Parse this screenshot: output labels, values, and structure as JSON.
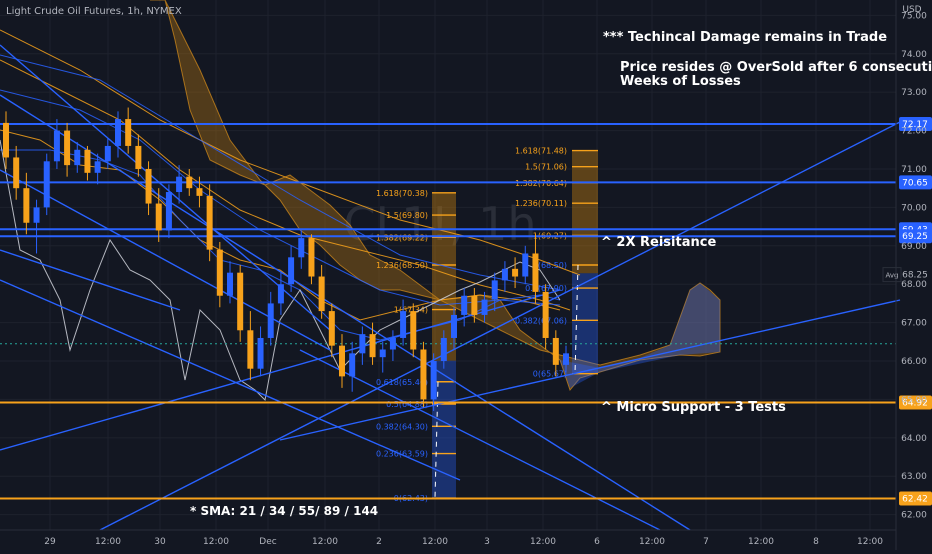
{
  "header": {
    "symbol_line": "Light Crude Oil Futures, 1h, NYMEX",
    "currency": "USD",
    "watermark": "CL1!, 1h"
  },
  "annotations": {
    "damage": "*** Techincal Damage remains in Trade",
    "price_line1": "Price resides @ OverSold after 6 consecutive",
    "price_line2": "Weeks of Losses",
    "resistance": "^ 2X Reisitance",
    "support": "^ Micro Support - 3 Tests",
    "sma": "* SMA:  21 / 34 / 55/ 89 / 144"
  },
  "chart_data": {
    "type": "candlestick",
    "y_axis": {
      "ylim": [
        61.6,
        75.4
      ],
      "ticks": [
        "75.00",
        "74.00",
        "73.00",
        "72.00",
        "71.00",
        "70.00",
        "69.00",
        "68.00",
        "67.00",
        "66.00",
        "65.00",
        "64.00",
        "63.00",
        "62.00"
      ]
    },
    "x_axis": {
      "ticks": [
        "29",
        "12:00",
        "30",
        "12:00",
        "Dec",
        "12:00",
        "2",
        "12:00",
        "3",
        "12:00",
        "6",
        "12:00",
        "7",
        "12:00",
        "8",
        "12:00"
      ]
    },
    "level_labels": [
      {
        "value": 72.17,
        "label": "72.17",
        "color": "#2962ff"
      },
      {
        "value": 70.65,
        "label": "70.65",
        "color": "#2962ff"
      },
      {
        "value": 69.43,
        "label": "69.43",
        "color": "#2962ff"
      },
      {
        "value": 69.25,
        "label": "69.25",
        "color": "#2962ff"
      },
      {
        "value": 64.92,
        "label": "64.92",
        "color": "#f7a21b"
      },
      {
        "value": 62.42,
        "label": "62.42",
        "color": "#f7a21b"
      }
    ],
    "avg_label": {
      "label": "Avg",
      "value": 68.25
    },
    "fib_left": [
      {
        "label": "1.618(70.38)",
        "value": 70.38
      },
      {
        "label": "1.5(69.80)",
        "value": 69.8
      },
      {
        "label": "1.382(69.22)",
        "value": 69.22
      },
      {
        "label": "1.236(68.50)",
        "value": 68.5
      },
      {
        "label": "1(67.34)",
        "value": 67.34
      },
      {
        "label": "0.618(65.46)",
        "value": 65.46
      },
      {
        "label": "0.5(64.88)",
        "value": 64.88
      },
      {
        "label": "0.382(64.30)",
        "value": 64.3
      },
      {
        "label": "0.236(63.59)",
        "value": 63.59
      },
      {
        "label": "0(62.43)",
        "value": 62.43
      }
    ],
    "fib_right": [
      {
        "label": "1.618(71.48)",
        "value": 71.48
      },
      {
        "label": "1.5(71.06)",
        "value": 71.06
      },
      {
        "label": "1.382(70.64)",
        "value": 70.64
      },
      {
        "label": "1.236(70.11)",
        "value": 70.11
      },
      {
        "label": "1(69.27)",
        "value": 69.27
      },
      {
        "label": "(68.50)",
        "value": 68.5
      },
      {
        "label": "0.6(67.90)",
        "value": 67.9
      },
      {
        "label": "0.382(67.06)",
        "value": 67.06
      },
      {
        "label": "0(65.67)",
        "value": 65.67
      }
    ],
    "candles": [
      [
        72.2,
        72.5,
        71.0,
        71.3
      ],
      [
        71.3,
        71.6,
        70.2,
        70.5
      ],
      [
        70.5,
        70.9,
        69.3,
        69.6
      ],
      [
        69.6,
        70.2,
        68.8,
        70.0
      ],
      [
        70.0,
        71.4,
        69.8,
        71.2
      ],
      [
        71.2,
        72.3,
        71.0,
        72.0
      ],
      [
        72.0,
        72.2,
        70.8,
        71.1
      ],
      [
        71.1,
        71.7,
        70.9,
        71.5
      ],
      [
        71.5,
        71.6,
        70.7,
        70.9
      ],
      [
        70.9,
        71.4,
        70.6,
        71.2
      ],
      [
        71.2,
        71.8,
        71.0,
        71.6
      ],
      [
        71.6,
        72.5,
        71.3,
        72.3
      ],
      [
        72.3,
        72.6,
        71.4,
        71.6
      ],
      [
        71.6,
        71.9,
        70.8,
        71.0
      ],
      [
        71.0,
        71.2,
        69.8,
        70.1
      ],
      [
        70.1,
        70.5,
        69.1,
        69.4
      ],
      [
        69.4,
        70.6,
        69.2,
        70.4
      ],
      [
        70.4,
        71.1,
        70.1,
        70.8
      ],
      [
        70.8,
        71.0,
        70.3,
        70.5
      ],
      [
        70.5,
        70.8,
        70.0,
        70.3
      ],
      [
        70.3,
        70.6,
        68.6,
        68.9
      ],
      [
        68.9,
        69.1,
        67.4,
        67.7
      ],
      [
        67.7,
        68.6,
        67.5,
        68.3
      ],
      [
        68.3,
        68.5,
        66.5,
        66.8
      ],
      [
        66.8,
        67.3,
        65.5,
        65.8
      ],
      [
        65.8,
        66.9,
        65.6,
        66.6
      ],
      [
        66.6,
        67.8,
        66.4,
        67.5
      ],
      [
        67.5,
        68.3,
        67.2,
        68.0
      ],
      [
        68.0,
        69.0,
        67.8,
        68.7
      ],
      [
        68.7,
        69.4,
        68.4,
        69.2
      ],
      [
        69.2,
        69.3,
        68.0,
        68.2
      ],
      [
        68.2,
        68.5,
        67.1,
        67.3
      ],
      [
        67.3,
        67.5,
        66.1,
        66.4
      ],
      [
        66.4,
        66.7,
        65.3,
        65.6
      ],
      [
        65.6,
        66.5,
        65.2,
        66.2
      ],
      [
        66.2,
        66.9,
        65.9,
        66.7
      ],
      [
        66.7,
        67.0,
        65.9,
        66.1
      ],
      [
        66.1,
        66.5,
        65.7,
        66.3
      ],
      [
        66.3,
        66.8,
        66.0,
        66.6
      ],
      [
        66.6,
        67.6,
        66.4,
        67.3
      ],
      [
        67.3,
        67.5,
        66.1,
        66.3
      ],
      [
        66.3,
        66.5,
        64.8,
        65.0
      ],
      [
        65.0,
        66.2,
        64.7,
        66.0
      ],
      [
        66.0,
        66.8,
        65.8,
        66.6
      ],
      [
        66.6,
        67.4,
        66.3,
        67.2
      ],
      [
        67.2,
        67.9,
        66.9,
        67.7
      ],
      [
        67.7,
        67.9,
        67.0,
        67.2
      ],
      [
        67.2,
        67.8,
        67.0,
        67.6
      ],
      [
        67.6,
        68.3,
        67.3,
        68.1
      ],
      [
        68.1,
        68.6,
        67.8,
        68.4
      ],
      [
        68.4,
        68.7,
        67.9,
        68.2
      ],
      [
        68.2,
        69.0,
        68.0,
        68.8
      ],
      [
        68.8,
        69.3,
        67.5,
        67.8
      ],
      [
        67.8,
        68.0,
        66.3,
        66.6
      ],
      [
        66.6,
        66.8,
        65.6,
        65.9
      ],
      [
        65.9,
        66.4,
        65.7,
        66.2
      ]
    ]
  }
}
